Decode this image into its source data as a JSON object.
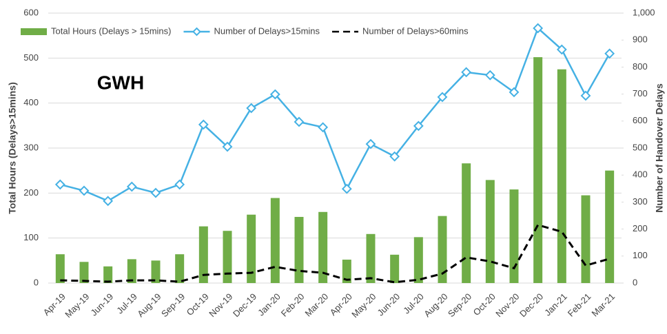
{
  "chart_data": {
    "type": "bar",
    "annotation": "GWH",
    "y_label": "Total Hours (Delays>15mins)",
    "y2_label": "Number of Handover Delays",
    "categories": [
      "Apr-19",
      "May-19",
      "Jun-19",
      "Jul-19",
      "Aug-19",
      "Sep-19",
      "Oct-19",
      "Nov-19",
      "Dec-19",
      "Jan-20",
      "Feb-20",
      "Mar-20",
      "Apr-20",
      "May-20",
      "Jun-20",
      "Jul-20",
      "Aug-20",
      "Sep-20",
      "Oct-20",
      "Nov-20",
      "Dec-20",
      "Jan-21",
      "Feb-21",
      "Mar-21"
    ],
    "series": [
      {
        "name": "Total Hours (Delays > 15mins)",
        "type": "bar",
        "color": "#70ad47",
        "values": [
          64,
          47,
          37,
          53,
          50,
          64,
          126,
          116,
          152,
          189,
          147,
          158,
          52,
          109,
          63,
          102,
          149,
          266,
          229,
          208,
          502,
          475,
          195,
          250
        ]
      },
      {
        "name": "Number of Delays>15mins",
        "type": "line",
        "axis": "y2",
        "color": "#45b1e4",
        "marker": "diamond",
        "values": [
          365,
          342,
          304,
          357,
          334,
          365,
          587,
          505,
          648,
          699,
          597,
          577,
          349,
          515,
          469,
          582,
          689,
          781,
          770,
          707,
          944,
          865,
          694,
          850
        ]
      },
      {
        "name": "Number of Delays>60mins",
        "type": "line",
        "axis": "y2",
        "color": "#000000",
        "line_style": "dashed",
        "values": [
          10,
          8,
          5,
          10,
          10,
          5,
          30,
          35,
          38,
          60,
          45,
          38,
          12,
          18,
          3,
          12,
          35,
          95,
          80,
          55,
          215,
          190,
          65,
          90
        ]
      }
    ],
    "ylim": [
      0,
      600
    ],
    "yticks": [
      0,
      100,
      200,
      300,
      400,
      500,
      600
    ],
    "y2lim": [
      0,
      1000
    ],
    "y2ticks": [
      0,
      100,
      200,
      300,
      400,
      500,
      600,
      700,
      800,
      900,
      {
        "value": 1000,
        "label": "1,000"
      }
    ],
    "grid": true,
    "legend": "top"
  }
}
